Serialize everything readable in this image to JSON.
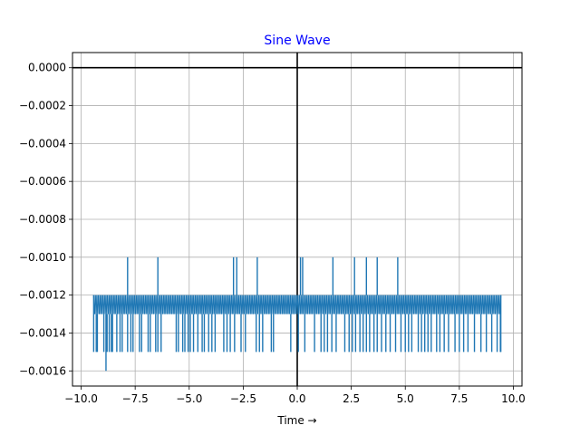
{
  "chart_data": {
    "type": "line",
    "title": "Sine Wave",
    "title_color": "#0000ff",
    "xlabel": "Time →",
    "ylabel": "",
    "xlim": [
      -10.4,
      10.4
    ],
    "ylim": [
      -0.00168,
      8e-05
    ],
    "grid": true,
    "series_color": "#1f77b4",
    "reference_lines": {
      "x": 0,
      "y": 0,
      "color": "#000000"
    },
    "x_ticks": [
      -10.0,
      -7.5,
      -5.0,
      -2.5,
      0.0,
      2.5,
      5.0,
      7.5,
      10.0
    ],
    "x_tick_labels": [
      "−10.0",
      "−7.5",
      "−5.0",
      "−2.5",
      "0.0",
      "2.5",
      "5.0",
      "7.5",
      "10.0"
    ],
    "y_ticks": [
      0.0,
      -0.0002,
      -0.0004,
      -0.0006,
      -0.0008,
      -0.001,
      -0.0012,
      -0.0014,
      -0.0016
    ],
    "y_tick_labels": [
      "0.0000",
      "−0.0002",
      "−0.0004",
      "−0.0006",
      "−0.0008",
      "−0.0010",
      "−0.0012",
      "−0.0014",
      "−0.0016"
    ],
    "series": [
      {
        "x_range": [
          -9.42,
          9.42
        ],
        "levels": [
          -0.0012,
          -0.0013
        ],
        "low_spikes": [
          -9.3,
          -9.25,
          -8.95,
          -8.8,
          -8.7,
          -8.6,
          -8.55,
          -8.35,
          -8.2,
          -8.1,
          -7.85,
          -7.7,
          -7.6,
          -7.3,
          -7.2,
          -6.9,
          -6.8,
          -6.55,
          -6.45,
          -6.3,
          -5.6,
          -5.5,
          -5.3,
          -5.2,
          -5.05,
          -4.95,
          -4.8,
          -4.6,
          -4.4,
          -4.3,
          -4.1,
          -3.95,
          -3.8,
          -3.4,
          -3.25,
          -3.1,
          -2.9,
          -2.6,
          -2.4,
          -1.9,
          -1.75,
          -1.6,
          -1.2,
          -1.1,
          -0.3,
          0.05,
          0.35,
          0.8,
          1.1,
          1.25,
          1.4,
          1.6,
          1.8,
          2.2,
          2.4,
          2.55,
          2.7,
          2.9,
          3.05,
          3.2,
          3.35,
          3.55,
          3.7,
          3.9,
          4.1,
          4.3,
          4.55,
          4.8,
          5.0,
          5.15,
          5.3,
          5.6,
          5.75,
          5.9,
          6.05,
          6.2,
          6.45,
          6.6,
          6.8,
          7.0,
          7.3,
          7.5,
          7.7,
          7.9,
          8.2,
          8.5,
          8.75,
          9.0,
          9.25,
          9.4
        ],
        "min_spike": {
          "x": -8.85,
          "y": -0.0016
        },
        "high_spikes": [
          -7.85,
          -6.45,
          -2.95,
          -2.8,
          -1.85,
          0.15,
          0.25,
          1.65,
          2.65,
          3.2,
          3.7,
          4.65
        ]
      }
    ]
  }
}
